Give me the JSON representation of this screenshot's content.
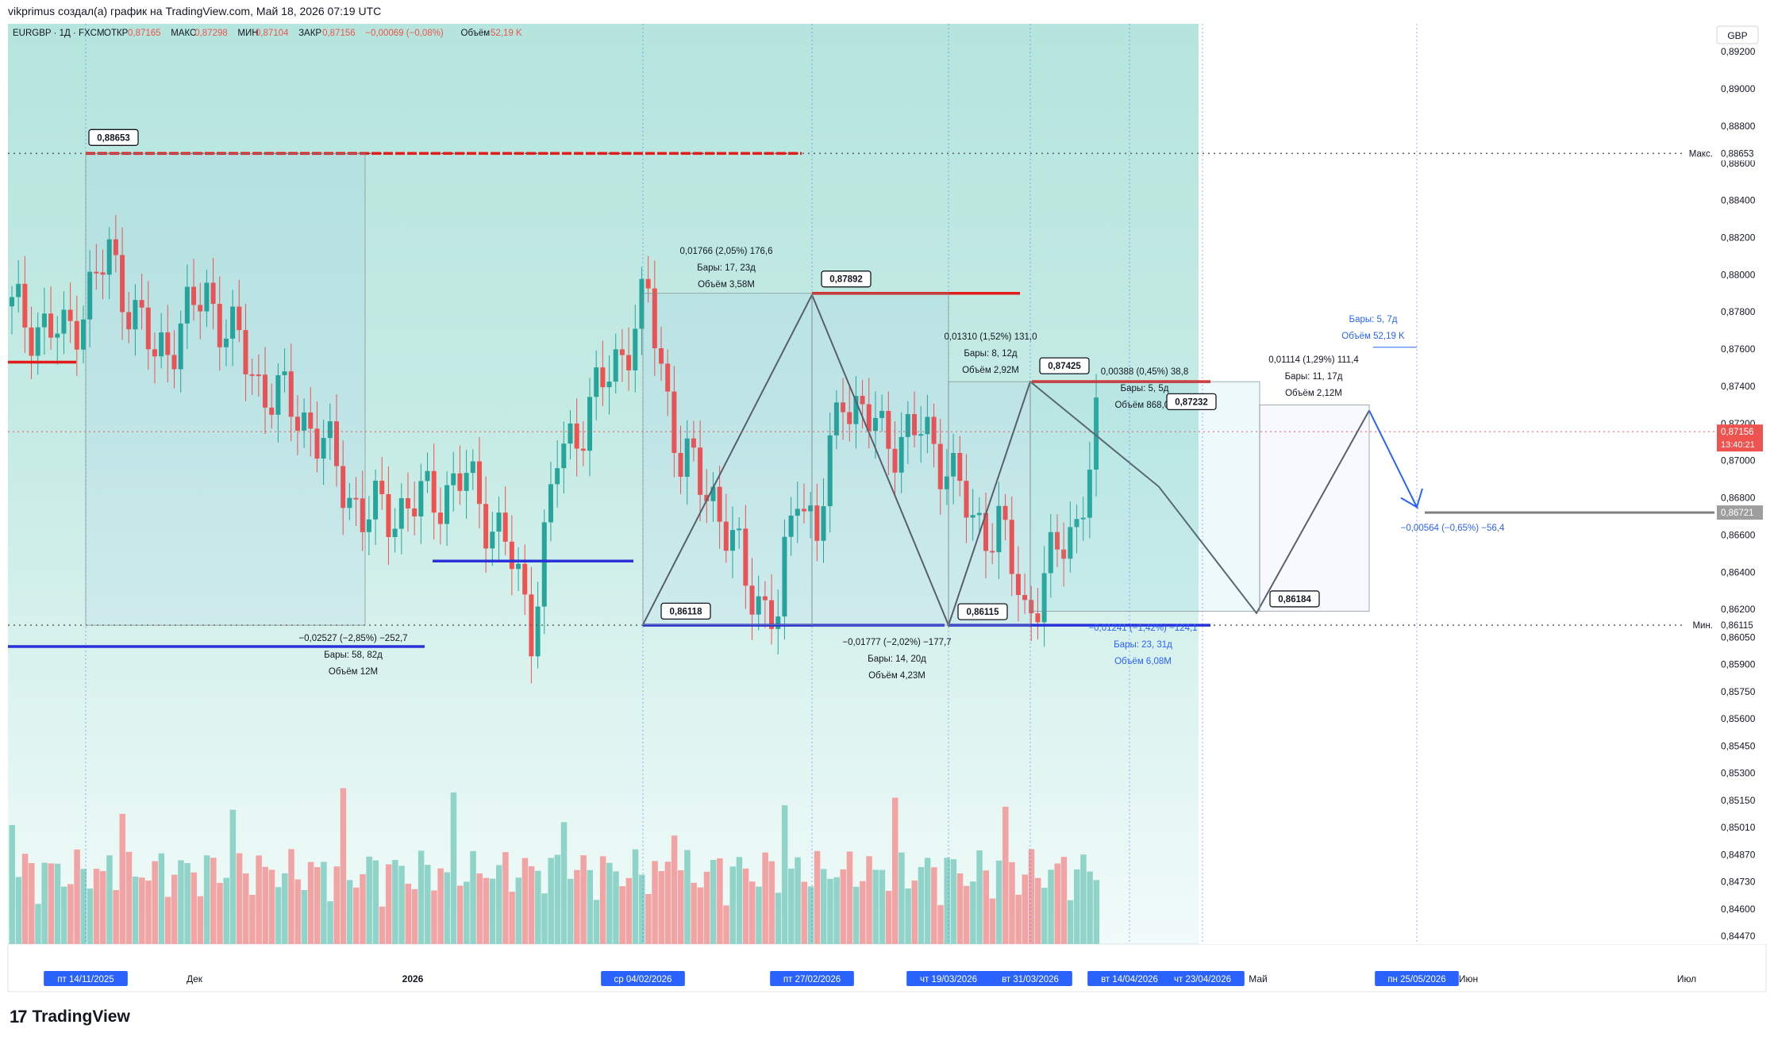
{
  "header": {
    "caption": "vikprimus создал(а) график на TradingView.com, Май 18, 2026 07:19 UTC"
  },
  "footer": {
    "brand": "TradingView",
    "logo_icon": "tradingview-logo-icon"
  },
  "colors": {
    "bg_top": "#b5e5dd",
    "bg_bottom": "#f1fbf9",
    "up": "#26a69a",
    "down": "#ef5350",
    "vol_up": "#8fd3c9",
    "vol_down": "#f2a3a3",
    "red_level": "#e21b1b",
    "blue_level": "#2832d8",
    "pattern": "#5a5f66",
    "blue_label": "#2962ff"
  },
  "chart_data": {
    "type": "candlestick",
    "symbol": "EURGBP · 1Д · FXCM",
    "ohlc_legend": [
      {
        "label": "ОТКР",
        "value": "0,87165"
      },
      {
        "label": "МАКС",
        "value": "0,87298"
      },
      {
        "label": "МИН",
        "value": "0,87104"
      },
      {
        "label": "ЗАКР",
        "value": "0,87156"
      },
      {
        "label": "",
        "value": "−0,00069 (−0,08%)"
      },
      {
        "label": "Объём",
        "value": "52,19 K"
      }
    ],
    "currency": "GBP",
    "ylim": [
      0.844,
      0.8935
    ],
    "y_ticks": [
      "0,89200",
      "0,89000",
      "0,88800",
      "0,88600",
      "0,88400",
      "0,88200",
      "0,88000",
      "0,87800",
      "0,87600",
      "0,87400",
      "0,87200",
      "0,87000",
      "0,86800",
      "0,86600",
      "0,86400",
      "0,86200",
      "0,86050",
      "0,85900",
      "0,85750",
      "0,85600",
      "0,85450",
      "0,85300",
      "0,85150",
      "0,85010",
      "0,84870",
      "0,84730",
      "0,84600",
      "0,84470"
    ],
    "x_labels": [
      {
        "text": "пт 14/11/2025",
        "highlight": true
      },
      {
        "text": "Дек",
        "highlight": false
      },
      {
        "text": "2026",
        "highlight": false,
        "bold": true
      },
      {
        "text": "ср 04/02/2026",
        "highlight": true
      },
      {
        "text": "пт 27/02/2026",
        "highlight": true
      },
      {
        "text": "чт 19/03/2026",
        "highlight": true
      },
      {
        "text": "вт 31/03/2026",
        "highlight": true
      },
      {
        "text": "вт 14/04/2026",
        "highlight": true
      },
      {
        "text": "чт 23/04/2026",
        "highlight": true
      },
      {
        "text": "Май",
        "highlight": false
      },
      {
        "text": "пн 25/05/2026",
        "highlight": true
      },
      {
        "text": "Июн",
        "highlight": false
      },
      {
        "text": "Июл",
        "highlight": false
      }
    ],
    "price_badges": [
      {
        "text": "Макс.",
        "value": "0,88653",
        "kind": "max"
      },
      {
        "text": "Мин.",
        "value": "0,86115",
        "kind": "min"
      },
      {
        "text": "",
        "value": "0,87156",
        "sub": "13:40:21",
        "kind": "last"
      },
      {
        "text": "",
        "value": "0,86721",
        "kind": "target"
      }
    ],
    "point_labels": [
      "0,88653",
      "0,87892",
      "0,86118",
      "0,86115",
      "0,87425",
      "0,87232",
      "0,86184"
    ],
    "measurements": [
      {
        "l1": "−0,02527 (−2,85%) −252,7",
        "l2": "Бары: 58, 82д",
        "l3": "Объём 12M"
      },
      {
        "l1": "0,01766 (2,05%) 176,6",
        "l2": "Бары: 17, 23д",
        "l3": "Объём 3,58M"
      },
      {
        "l1": "−0,01777 (−2,02%) −177,7",
        "l2": "Бары: 14, 20д",
        "l3": "Объём 4,23M"
      },
      {
        "l1": "0,01310 (1,52%) 131,0",
        "l2": "Бары: 8, 12д",
        "l3": "Объём 2,92M"
      },
      {
        "l1": "0,00388 (0,45%) 38,8",
        "l2": "Бары: 5, 5д",
        "l3": "Объём 868,07"
      },
      {
        "l1": "−0,01241 (−1,42%) −124,1",
        "l2": "Бары: 23, 31д",
        "l3": "Объём 6,08M"
      },
      {
        "l1": "0,01114 (1,29%) 111,4",
        "l2": "Бары: 11, 17д",
        "l3": "Объём 2,12M"
      },
      {
        "l1": "Бары: 5, 7д",
        "l2": "Объём 52,19 K",
        "l3": ""
      },
      {
        "l1": "−0,00564 (−0,65%) −56,4",
        "l2": "",
        "l3": ""
      }
    ]
  }
}
